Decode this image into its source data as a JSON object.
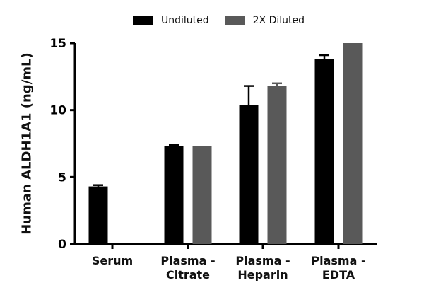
{
  "chart_data": {
    "type": "bar",
    "categories": [
      {
        "line1": "Serum",
        "line2": ""
      },
      {
        "line1": "Plasma -",
        "line2": "Citrate"
      },
      {
        "line1": "Plasma -",
        "line2": "Heparin"
      },
      {
        "line1": "Plasma -",
        "line2": "EDTA"
      }
    ],
    "series": [
      {
        "name": "Undiluted",
        "color": "#000000",
        "values": [
          4.3,
          7.3,
          10.4,
          13.8
        ],
        "errors": [
          0.1,
          0.1,
          1.4,
          0.3
        ]
      },
      {
        "name": "2X Diluted",
        "color": "#595959",
        "values": [
          null,
          7.3,
          11.8,
          15.0
        ],
        "errors": [
          0,
          0,
          0.2,
          0
        ]
      }
    ],
    "ylabel": "Human ALDH1A1 (ng/mL)",
    "ylim": [
      0,
      15
    ],
    "yticks": [
      "0",
      "5",
      "10",
      "15"
    ],
    "grid": false,
    "legend_position": "top"
  }
}
